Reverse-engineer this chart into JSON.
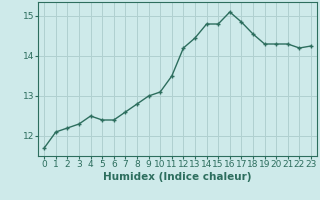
{
  "x": [
    0,
    1,
    2,
    3,
    4,
    5,
    6,
    7,
    8,
    9,
    10,
    11,
    12,
    13,
    14,
    15,
    16,
    17,
    18,
    19,
    20,
    21,
    22,
    23
  ],
  "y": [
    11.7,
    12.1,
    12.2,
    12.3,
    12.5,
    12.4,
    12.4,
    12.6,
    12.8,
    13.0,
    13.1,
    13.5,
    14.2,
    14.45,
    14.8,
    14.8,
    15.1,
    14.85,
    14.55,
    14.3,
    14.3,
    14.3,
    14.2,
    14.25
  ],
  "line_color": "#2d6e5e",
  "marker": "+",
  "marker_size": 3,
  "xlabel": "Humidex (Indice chaleur)",
  "ylim": [
    11.5,
    15.35
  ],
  "xlim": [
    -0.5,
    23.5
  ],
  "yticks": [
    12,
    13,
    14,
    15
  ],
  "xticks": [
    0,
    1,
    2,
    3,
    4,
    5,
    6,
    7,
    8,
    9,
    10,
    11,
    12,
    13,
    14,
    15,
    16,
    17,
    18,
    19,
    20,
    21,
    22,
    23
  ],
  "bg_color": "#ceeaea",
  "grid_color": "#b0d0d0",
  "tick_color": "#2d6e5e",
  "xlabel_color": "#2d6e5e",
  "xlabel_fontsize": 7.5,
  "tick_fontsize": 6.5,
  "linewidth": 1.0,
  "markeredgewidth": 1.0
}
